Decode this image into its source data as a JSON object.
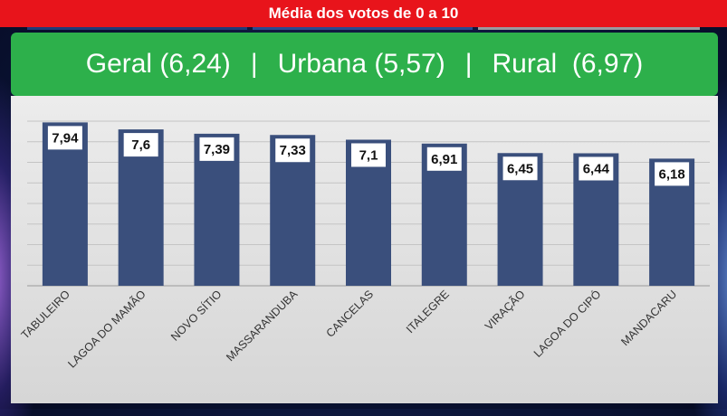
{
  "header": {
    "title": "Média dos votos de 0 a 10"
  },
  "summary": {
    "geral": "Geral (6,24)",
    "sep1": "|",
    "urbana": "Urbana (5,57)",
    "sep2": "|",
    "rural": "Rural  (6,97)"
  },
  "colors": {
    "bar": "#3a4f7c",
    "header_red": "#e8141b",
    "summary_green": "#2db04b"
  },
  "chart_data": {
    "type": "bar",
    "categories": [
      "TABULEIRO",
      "LAGOA DO MAMÃO",
      "NOVO SÍTIO",
      "MASSARANDUBA",
      "CANCELAS",
      "ITALEGRE",
      "VIRAÇÃO",
      "LAGOA DO CIPÓ",
      "MANDACARU"
    ],
    "values": [
      7.94,
      7.6,
      7.39,
      7.33,
      7.1,
      6.91,
      6.45,
      6.44,
      6.18
    ],
    "labels": [
      "7,94",
      "7,6",
      "7,39",
      "7,33",
      "7,1",
      "6,91",
      "6,45",
      "6,44",
      "6,18"
    ],
    "ylim": [
      0,
      8
    ],
    "grid": true
  }
}
